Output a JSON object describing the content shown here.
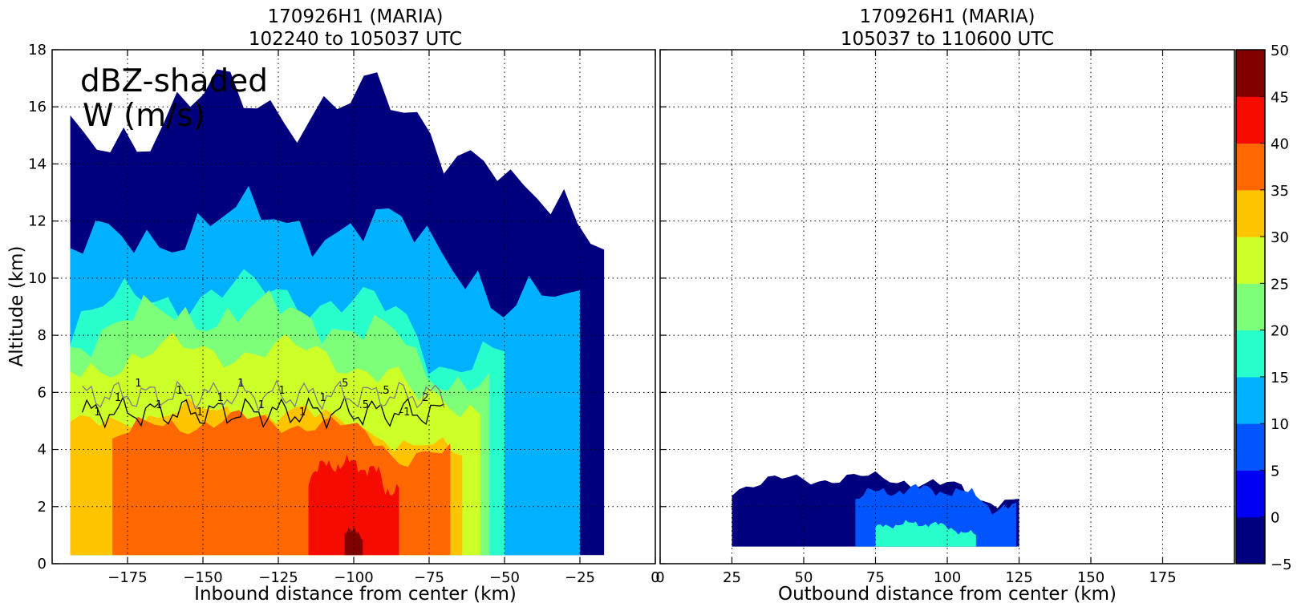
{
  "chart_data": [
    {
      "type": "heatmap",
      "title_line1": "170926H1 (MARIA)",
      "title_line2": "102240 to 105037 UTC",
      "annotation_line1": "dBZ-shaded",
      "annotation_line2": "W (m/s)",
      "xlabel": "Inbound distance from center (km)",
      "ylabel": "Altitude (km)",
      "xlim": [
        -200,
        0
      ],
      "ylim": [
        0,
        18
      ],
      "xticks": [
        -175,
        -150,
        -125,
        -100,
        -75,
        -50,
        -25,
        0
      ],
      "yticks": [
        0,
        2,
        4,
        6,
        8,
        10,
        12,
        14,
        16,
        18
      ],
      "grid": true,
      "contour_labels": [
        "1",
        "1",
        "1",
        "1",
        "1",
        "1",
        "1",
        "1",
        "1",
        "1",
        "1",
        "1",
        ".5",
        ".5",
        ".5",
        "-1",
        "2"
      ],
      "echo_regions": [
        {
          "dbz": -5,
          "x_range": [
            -194,
            -17
          ],
          "top_km": 16.2
        },
        {
          "dbz": 10,
          "x_range": [
            -194,
            -25
          ],
          "top_km": 12.0
        },
        {
          "dbz": 15,
          "x_range": [
            -194,
            -50
          ],
          "top_km": 9.5
        },
        {
          "dbz": 20,
          "x_range": [
            -194,
            -55
          ],
          "top_km": 8.8
        },
        {
          "dbz": 25,
          "x_range": [
            -194,
            -58
          ],
          "top_km": 7.5
        },
        {
          "dbz": 30,
          "x_range": [
            -194,
            -64
          ],
          "top_km": 5.3
        },
        {
          "dbz": 35,
          "x_range": [
            -180,
            -68
          ],
          "top_km": 5.0
        },
        {
          "dbz": 40,
          "x_range": [
            -115,
            -85
          ],
          "top_km": 3.5
        },
        {
          "dbz": 45,
          "x_range": [
            -103,
            -97
          ],
          "top_km": 1.2
        }
      ]
    },
    {
      "type": "heatmap",
      "title_line1": "170926H1 (MARIA)",
      "title_line2": "105037 to 110600 UTC",
      "xlabel": "Outbound distance from center (km)",
      "xlim": [
        0,
        200
      ],
      "ylim": [
        0,
        18
      ],
      "xticks": [
        0,
        25,
        50,
        75,
        100,
        125,
        150,
        175
      ],
      "grid": true,
      "echo_regions": [
        {
          "dbz": -5,
          "x_range": [
            25,
            125
          ],
          "top_km": 3.0
        },
        {
          "dbz": 5,
          "x_range": [
            68,
            124
          ],
          "top_km": 2.6
        },
        {
          "dbz": 15,
          "x_range": [
            75,
            110
          ],
          "top_km": 1.4
        }
      ]
    }
  ],
  "colorbar": {
    "ticks": [
      -5,
      0,
      5,
      10,
      15,
      20,
      25,
      30,
      35,
      40,
      45,
      50
    ],
    "colors": [
      "#00007f",
      "#0000f5",
      "#0055ff",
      "#00b1ff",
      "#29ffcd",
      "#7dff7a",
      "#cdff29",
      "#ffc400",
      "#ff6800",
      "#f50b00",
      "#800000"
    ]
  }
}
